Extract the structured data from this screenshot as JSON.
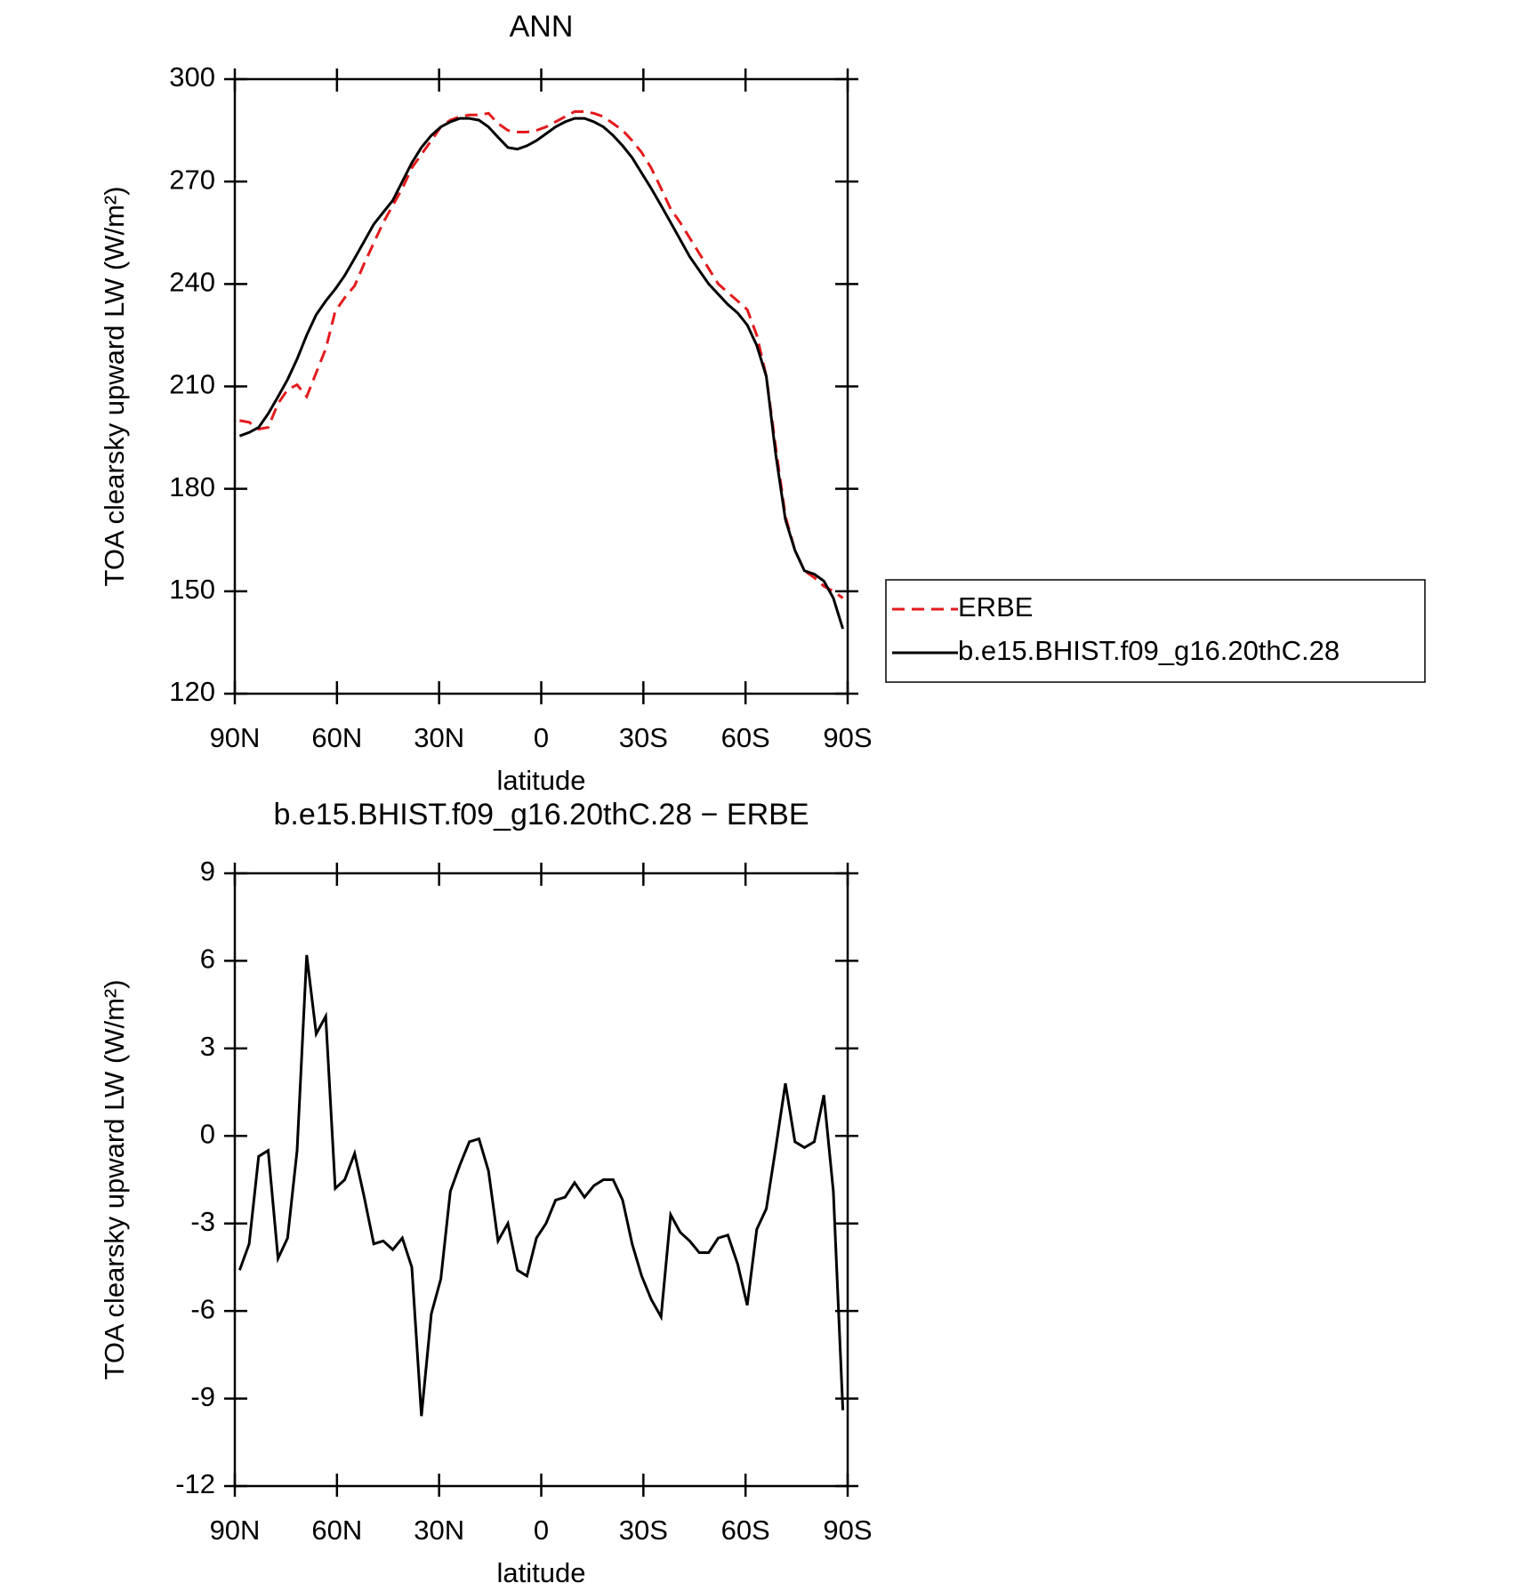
{
  "chart_data": [
    {
      "type": "line",
      "title": "ANN",
      "xlabel": "latitude",
      "ylabel": "TOA clearsky upward LW (W/m²)",
      "x": [
        88.6,
        85.8,
        83.0,
        80.2,
        77.3,
        74.5,
        71.7,
        68.9,
        66.1,
        63.3,
        60.5,
        57.7,
        54.8,
        52.0,
        49.2,
        46.4,
        43.6,
        40.8,
        38.0,
        35.2,
        32.3,
        29.5,
        26.7,
        23.9,
        21.1,
        18.3,
        15.5,
        12.7,
        9.8,
        7.0,
        4.2,
        1.4,
        -1.4,
        -4.2,
        -7.0,
        -9.8,
        -12.7,
        -15.5,
        -18.3,
        -21.1,
        -23.9,
        -26.7,
        -29.5,
        -32.3,
        -35.2,
        -38.0,
        -40.8,
        -43.6,
        -46.4,
        -49.2,
        -52.0,
        -54.8,
        -57.7,
        -60.5,
        -63.3,
        -66.1,
        -68.9,
        -71.7,
        -74.5,
        -77.3,
        -80.2,
        -83.0,
        -85.8,
        -88.6
      ],
      "series": [
        {
          "name": "ERBE",
          "color": "#e41a1c",
          "dash": "dashed",
          "values": [
            200,
            199.5,
            197.5,
            198,
            205,
            209,
            210.5,
            207,
            214,
            221,
            232,
            236,
            239.5,
            246,
            252,
            258,
            263,
            268,
            274,
            278,
            282,
            286,
            288,
            289,
            289.5,
            289.5,
            290,
            287,
            285,
            284.5,
            284.5,
            285,
            286,
            287.5,
            289,
            290.5,
            290.5,
            290,
            289,
            287,
            285,
            282,
            278.5,
            274,
            268,
            262,
            258,
            253.5,
            249,
            244.5,
            240,
            237.5,
            235,
            232.5,
            225,
            213,
            192,
            172,
            162,
            156,
            154,
            151.5,
            150,
            148
          ]
        },
        {
          "name": "b.e15.BHIST.f09_g16.20thC.28",
          "color": "#000000",
          "dash": "solid",
          "values": [
            195.5,
            196.5,
            198,
            202,
            207,
            212,
            218,
            225,
            231,
            235,
            238.5,
            242.5,
            247.5,
            252.5,
            257.5,
            261,
            264.5,
            270,
            275.5,
            280,
            283.5,
            286,
            287.5,
            288.5,
            288.5,
            288,
            286,
            283,
            280,
            279.5,
            280.5,
            282,
            284,
            286,
            287.5,
            288.5,
            288.5,
            287.5,
            286,
            283.5,
            280.5,
            277,
            272.5,
            268,
            263,
            258,
            253,
            248,
            244,
            240,
            237,
            234,
            231.5,
            228,
            222,
            213,
            190,
            171,
            162,
            156,
            155,
            153,
            148,
            139
          ]
        }
      ],
      "xlim": [
        90,
        -90
      ],
      "ylim": [
        120,
        300
      ],
      "xticks": [
        {
          "value": 90,
          "label": "90N"
        },
        {
          "value": 60,
          "label": "60N"
        },
        {
          "value": 30,
          "label": "30N"
        },
        0,
        {
          "value": -30,
          "label": "30S"
        },
        {
          "value": -60,
          "label": "60S"
        },
        {
          "value": -90,
          "label": "90S"
        }
      ],
      "yticks": [
        120,
        150,
        180,
        210,
        240,
        270,
        300
      ],
      "legend": "right"
    },
    {
      "type": "line",
      "title": "b.e15.BHIST.f09_g16.20thC.28 − ERBE",
      "xlabel": "latitude",
      "ylabel": "TOA clearsky upward LW (W/m²)",
      "x": [
        88.6,
        85.8,
        83.0,
        80.2,
        77.3,
        74.5,
        71.7,
        68.9,
        66.1,
        63.3,
        60.5,
        57.7,
        54.8,
        52.0,
        49.2,
        46.4,
        43.6,
        40.8,
        38.0,
        35.2,
        32.3,
        29.5,
        26.7,
        23.9,
        21.1,
        18.3,
        15.5,
        12.7,
        9.8,
        7.0,
        4.2,
        1.4,
        -1.4,
        -4.2,
        -7.0,
        -9.8,
        -12.7,
        -15.5,
        -18.3,
        -21.1,
        -23.9,
        -26.7,
        -29.5,
        -32.3,
        -35.2,
        -38.0,
        -40.8,
        -43.6,
        -46.4,
        -49.2,
        -52.0,
        -54.8,
        -57.7,
        -60.5,
        -63.3,
        -66.1,
        -68.9,
        -71.7,
        -74.5,
        -77.3,
        -80.2,
        -83.0,
        -85.8,
        -88.6
      ],
      "series": [
        {
          "color": "#000000",
          "dash": "solid",
          "values": [
            -4.6,
            -3.7,
            -0.7,
            -0.5,
            -4.2,
            -3.5,
            -0.5,
            6.2,
            3.5,
            4.1,
            -1.8,
            -1.5,
            -0.6,
            -2.1,
            -3.7,
            -3.6,
            -3.9,
            -3.5,
            -4.5,
            -9.6,
            -6.1,
            -4.9,
            -1.9,
            -1.0,
            -0.2,
            -0.1,
            -1.2,
            -3.6,
            -3.0,
            -4.6,
            -4.8,
            -3.5,
            -3.0,
            -2.2,
            -2.1,
            -1.6,
            -2.1,
            -1.7,
            -1.5,
            -1.5,
            -2.2,
            -3.7,
            -4.8,
            -5.6,
            -6.2,
            -2.7,
            -3.3,
            -3.6,
            -4.0,
            -4.0,
            -3.5,
            -3.4,
            -4.4,
            -5.8,
            -3.2,
            -2.5,
            -0.4,
            1.8,
            -0.2,
            -0.4,
            -0.2,
            1.4,
            -1.9,
            -9.4
          ]
        }
      ],
      "xlim": [
        90,
        -90
      ],
      "ylim": [
        -12,
        9
      ],
      "xticks": [
        {
          "value": 90,
          "label": "90N"
        },
        {
          "value": 60,
          "label": "60N"
        },
        {
          "value": 30,
          "label": "30N"
        },
        0,
        {
          "value": -30,
          "label": "30S"
        },
        {
          "value": -60,
          "label": "60S"
        },
        {
          "value": -90,
          "label": "90S"
        }
      ],
      "yticks": [
        -12,
        -9,
        -6,
        -3,
        0,
        3,
        6,
        9
      ]
    }
  ]
}
